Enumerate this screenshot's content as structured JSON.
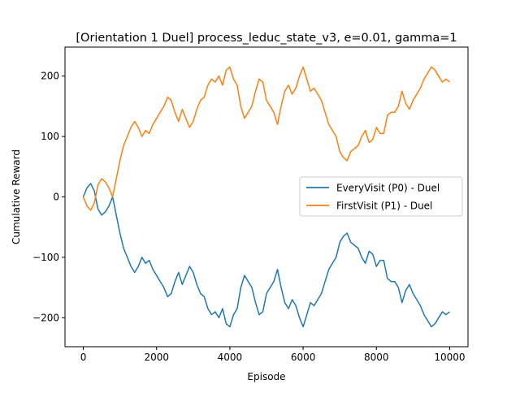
{
  "chart_data": {
    "type": "line",
    "title": "[Orientation 1 Duel] process_leduc_state_v3, e=0.01, gamma=1",
    "xlabel": "Episode",
    "ylabel": "Cumulative Reward",
    "xlim": [
      -500,
      10500
    ],
    "ylim": [
      -248,
      248
    ],
    "x_ticks": [
      0,
      2000,
      4000,
      6000,
      8000,
      10000
    ],
    "x_tick_labels": [
      "0",
      "2000",
      "4000",
      "6000",
      "8000",
      "10000"
    ],
    "y_ticks": [
      -200,
      -100,
      0,
      100,
      200
    ],
    "y_tick_labels": [
      "−200",
      "−100",
      "0",
      "100",
      "200"
    ],
    "grid": false,
    "legend_position": "center-right",
    "series": [
      {
        "name": "EveryVisit (P0) - Duel",
        "color": "#1f77b4",
        "x": [
          0,
          100,
          200,
          300,
          400,
          500,
          600,
          700,
          800,
          900,
          1000,
          1100,
          1200,
          1300,
          1400,
          1500,
          1600,
          1700,
          1800,
          1900,
          2000,
          2100,
          2200,
          2300,
          2400,
          2500,
          2600,
          2700,
          2800,
          2900,
          3000,
          3100,
          3200,
          3300,
          3400,
          3500,
          3600,
          3700,
          3800,
          3900,
          4000,
          4100,
          4200,
          4300,
          4400,
          4500,
          4600,
          4700,
          4800,
          4900,
          5000,
          5100,
          5200,
          5300,
          5400,
          5500,
          5600,
          5700,
          5800,
          5900,
          6000,
          6100,
          6200,
          6300,
          6400,
          6500,
          6600,
          6700,
          6800,
          6900,
          7000,
          7100,
          7200,
          7300,
          7400,
          7500,
          7600,
          7700,
          7800,
          7900,
          8000,
          8100,
          8200,
          8300,
          8400,
          8500,
          8600,
          8700,
          8800,
          8900,
          9000,
          9100,
          9200,
          9300,
          9400,
          9500,
          9600,
          9700,
          9800,
          9900,
          10000
        ],
        "values": [
          0,
          15,
          22,
          10,
          -20,
          -30,
          -25,
          -15,
          0,
          -30,
          -60,
          -85,
          -100,
          -115,
          -125,
          -115,
          -100,
          -110,
          -105,
          -120,
          -130,
          -140,
          -150,
          -165,
          -160,
          -140,
          -125,
          -145,
          -130,
          -115,
          -125,
          -145,
          -160,
          -165,
          -185,
          -195,
          -190,
          -200,
          -185,
          -210,
          -215,
          -195,
          -185,
          -150,
          -130,
          -140,
          -150,
          -175,
          -195,
          -190,
          -160,
          -150,
          -140,
          -120,
          -150,
          -175,
          -185,
          -170,
          -180,
          -200,
          -215,
          -195,
          -175,
          -180,
          -170,
          -160,
          -140,
          -120,
          -110,
          -100,
          -75,
          -65,
          -60,
          -75,
          -80,
          -85,
          -100,
          -110,
          -90,
          -95,
          -115,
          -105,
          -105,
          -135,
          -140,
          -140,
          -150,
          -175,
          -155,
          -145,
          -160,
          -170,
          -180,
          -195,
          -205,
          -215,
          -210,
          -200,
          -190,
          -195,
          -190
        ]
      },
      {
        "name": "FirstVisit (P1) - Duel",
        "color": "#ff7f0e",
        "x": [
          0,
          100,
          200,
          300,
          400,
          500,
          600,
          700,
          800,
          900,
          1000,
          1100,
          1200,
          1300,
          1400,
          1500,
          1600,
          1700,
          1800,
          1900,
          2000,
          2100,
          2200,
          2300,
          2400,
          2500,
          2600,
          2700,
          2800,
          2900,
          3000,
          3100,
          3200,
          3300,
          3400,
          3500,
          3600,
          3700,
          3800,
          3900,
          4000,
          4100,
          4200,
          4300,
          4400,
          4500,
          4600,
          4700,
          4800,
          4900,
          5000,
          5100,
          5200,
          5300,
          5400,
          5500,
          5600,
          5700,
          5800,
          5900,
          6000,
          6100,
          6200,
          6300,
          6400,
          6500,
          6600,
          6700,
          6800,
          6900,
          7000,
          7100,
          7200,
          7300,
          7400,
          7500,
          7600,
          7700,
          7800,
          7900,
          8000,
          8100,
          8200,
          8300,
          8400,
          8500,
          8600,
          8700,
          8800,
          8900,
          9000,
          9100,
          9200,
          9300,
          9400,
          9500,
          9600,
          9700,
          9800,
          9900,
          10000
        ],
        "values": [
          0,
          -15,
          -22,
          -10,
          20,
          30,
          25,
          15,
          0,
          30,
          60,
          85,
          100,
          115,
          125,
          115,
          100,
          110,
          105,
          120,
          130,
          140,
          150,
          165,
          160,
          140,
          125,
          145,
          130,
          115,
          125,
          145,
          160,
          165,
          185,
          195,
          190,
          200,
          185,
          210,
          215,
          195,
          185,
          150,
          130,
          140,
          150,
          175,
          195,
          190,
          160,
          150,
          140,
          120,
          150,
          175,
          185,
          170,
          180,
          200,
          215,
          195,
          175,
          180,
          170,
          160,
          140,
          120,
          110,
          100,
          75,
          65,
          60,
          75,
          80,
          85,
          100,
          110,
          90,
          95,
          115,
          105,
          105,
          135,
          140,
          140,
          150,
          175,
          155,
          145,
          160,
          170,
          180,
          195,
          205,
          215,
          210,
          200,
          190,
          195,
          190
        ]
      }
    ]
  }
}
